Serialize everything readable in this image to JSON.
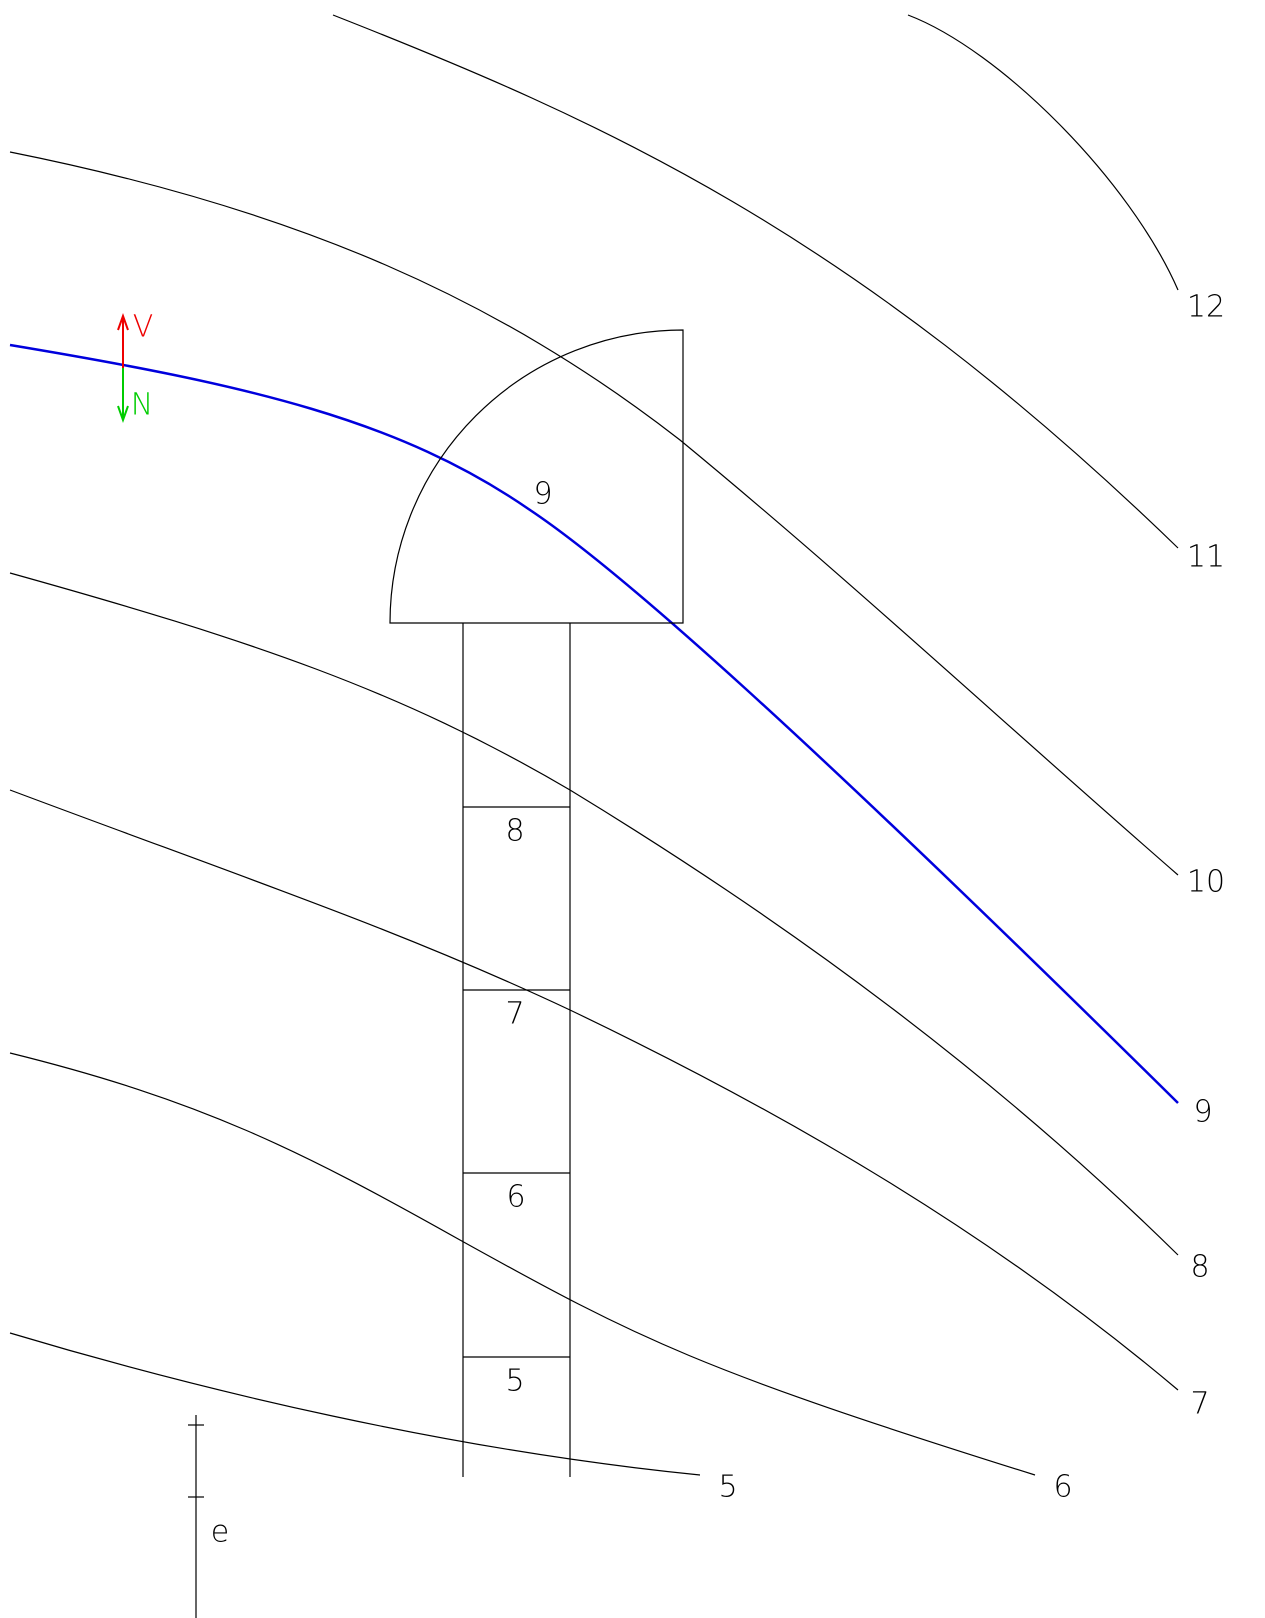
{
  "curves": [
    {
      "label": "12"
    },
    {
      "label": "11"
    },
    {
      "label": "10"
    },
    {
      "label": "9"
    },
    {
      "label": "8"
    },
    {
      "label": "7"
    },
    {
      "label": "6"
    },
    {
      "label": "5"
    }
  ],
  "column": {
    "top_label": "9",
    "segments": [
      "8",
      "7",
      "6",
      "5"
    ]
  },
  "arrows": {
    "up": "V",
    "down": "N"
  },
  "scale": {
    "label": "e"
  }
}
